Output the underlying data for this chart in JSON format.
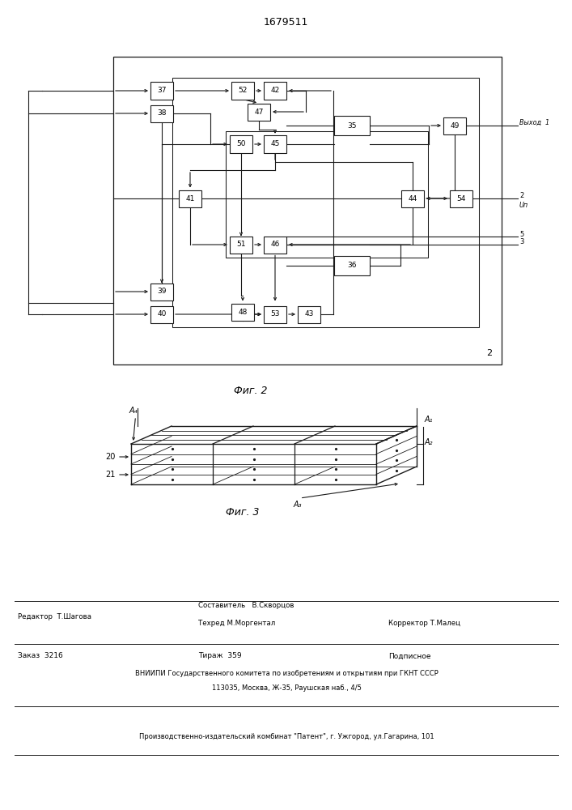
{
  "title": "1679511",
  "fig2_label": "Фиг. 2",
  "fig3_label": "Фиг. 3",
  "line_color": "#1a1a1a"
}
